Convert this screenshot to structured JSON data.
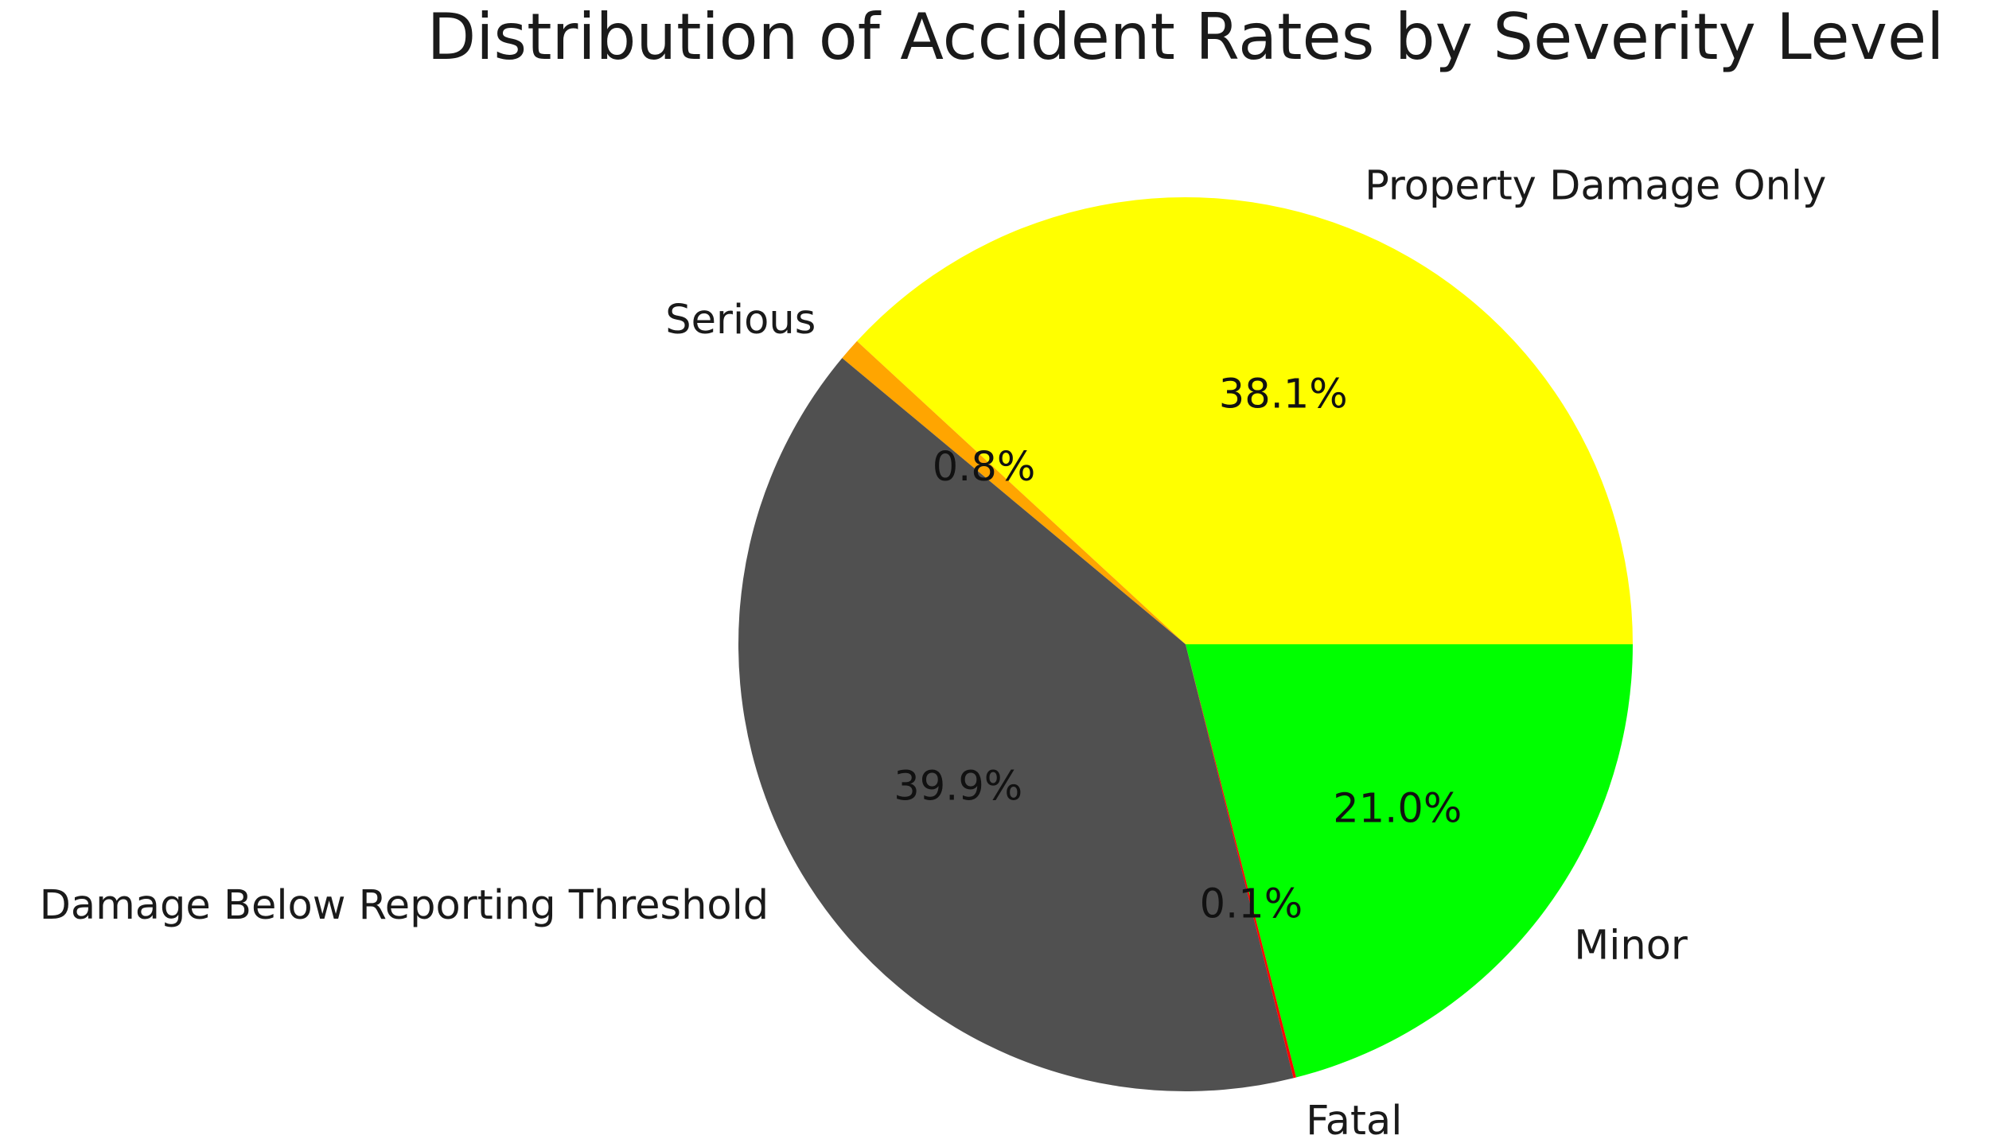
{
  "chart_data": {
    "type": "pie",
    "title": "Distribution of Accident Rates by Severity Level",
    "start_angle_deg": 0,
    "direction": "counterclockwise",
    "slices": [
      {
        "label": "Property Damage Only",
        "value": 38.1,
        "pct_label": "38.1%",
        "color": "#ffff00"
      },
      {
        "label": "Serious",
        "value": 0.8,
        "pct_label": "0.8%",
        "color": "#ffa500"
      },
      {
        "label": "Damage Below Reporting Threshold",
        "value": 39.9,
        "pct_label": "39.9%",
        "color": "#505050"
      },
      {
        "label": "Fatal",
        "value": 0.1,
        "pct_label": "0.1%",
        "color": "#ff0000"
      },
      {
        "label": "Minor",
        "value": 21.0,
        "pct_label": "21.0%",
        "color": "#00ff00"
      }
    ],
    "legend": "none",
    "grid": false
  }
}
